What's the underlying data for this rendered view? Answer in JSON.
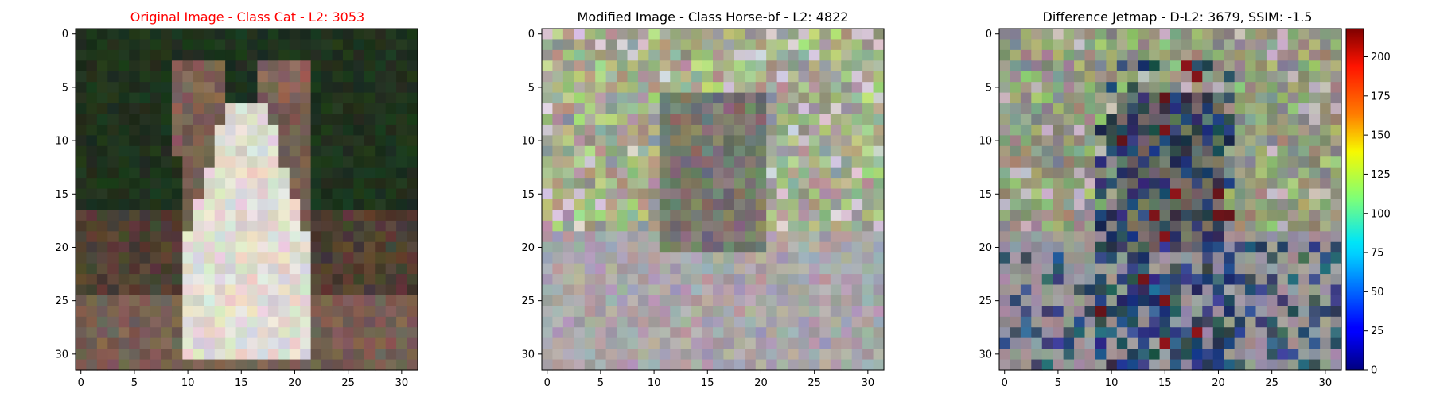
{
  "colors": {
    "title_original": "#ff0000",
    "title_default": "#000000",
    "axes": "#000000"
  },
  "chart_data": [
    {
      "type": "heatmap",
      "title": "Original Image - Class Cat - L2: 3053",
      "xlim": [
        -0.5,
        31.5
      ],
      "ylim": [
        31.5,
        -0.5
      ],
      "xticks": [
        0,
        5,
        10,
        15,
        20,
        25,
        30
      ],
      "yticks": [
        0,
        5,
        10,
        15,
        20,
        25,
        30
      ],
      "image": "32x32 RGB pixelated photo of a brown and white cat on a dark green background"
    },
    {
      "type": "heatmap",
      "title": "Modified Image - Class Horse-bf - L2: 4822",
      "xlim": [
        -0.5,
        31.5
      ],
      "ylim": [
        31.5,
        -0.5
      ],
      "xticks": [
        0,
        5,
        10,
        15,
        20,
        25,
        30
      ],
      "yticks": [
        0,
        5,
        10,
        15,
        20,
        25,
        30
      ],
      "image": "32x32 RGB pixelated image, gray/green noisy texture"
    },
    {
      "type": "heatmap",
      "title": "Difference Jetmap - D-L2: 3679, SSIM: -1.5",
      "xlim": [
        -0.5,
        31.5
      ],
      "ylim": [
        31.5,
        -0.5
      ],
      "xticks": [
        0,
        5,
        10,
        15,
        20,
        25,
        30
      ],
      "yticks": [
        0,
        5,
        10,
        15,
        20,
        25,
        30
      ],
      "colorbar": {
        "colormap": "jet",
        "min": 0,
        "max": 218,
        "ticks": [
          0,
          25,
          50,
          75,
          100,
          125,
          150,
          175,
          200
        ]
      },
      "image": "32x32 difference map overlay"
    }
  ]
}
